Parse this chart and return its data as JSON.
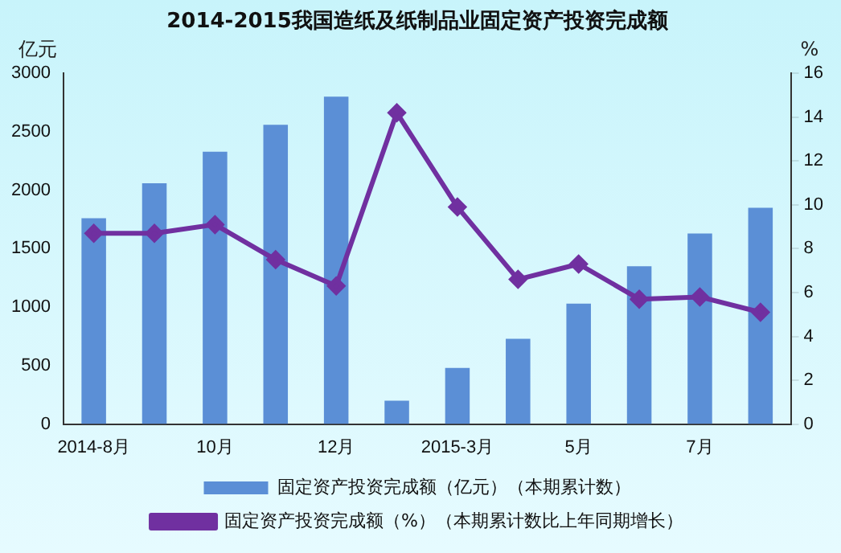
{
  "chart_data": {
    "type": "bar",
    "title": "2014-2015我国造纸及纸制品业固定资产投资完成额",
    "categories": [
      "2014-8月",
      null,
      "10月",
      null,
      "12月",
      null,
      "2015-3月",
      null,
      "5月",
      null,
      "7月",
      null
    ],
    "series": [
      {
        "name": "固定资产投资完成额（亿元）（本期累计数）",
        "color": "#5b8fd6",
        "values": [
          1760,
          2060,
          2330,
          2560,
          2800,
          200,
          480,
          730,
          1030,
          1350,
          1630,
          1850
        ]
      },
      {
        "name": "固定资产投资完成额（%）（本期累计数比上年同期增长）",
        "type": "line",
        "axis": "y2",
        "color": "#7030a0",
        "values": [
          8.7,
          8.7,
          9.1,
          7.5,
          6.3,
          14.2,
          9.9,
          6.6,
          7.3,
          5.7,
          5.8,
          5.1
        ]
      }
    ],
    "ylabel": "亿元",
    "y2label": "%",
    "ylim": [
      0,
      3000
    ],
    "yticks": [
      0,
      500,
      1000,
      1500,
      2000,
      2500,
      3000
    ],
    "y2lim": [
      0,
      16
    ],
    "y2ticks": [
      0,
      2,
      4,
      6,
      8,
      10,
      12,
      14,
      16
    ],
    "grid": false,
    "legend": "bottom",
    "marker": "diamond",
    "line_style": "solid"
  }
}
